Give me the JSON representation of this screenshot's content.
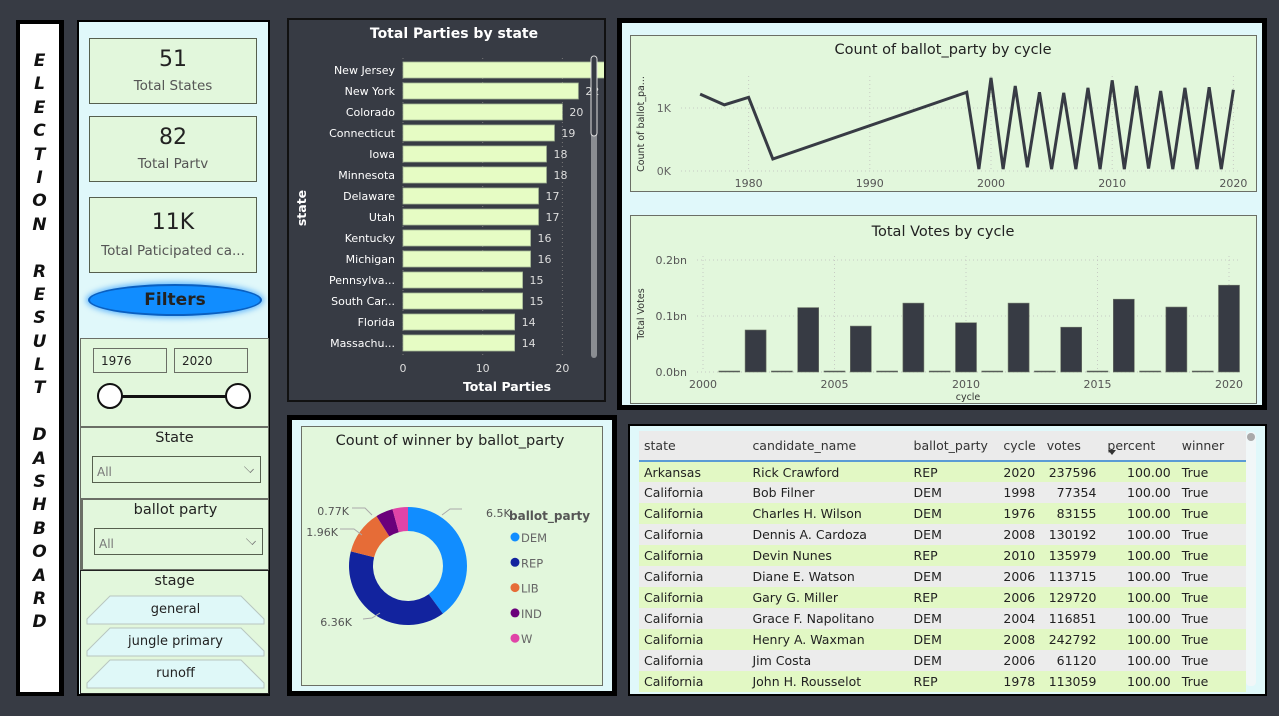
{
  "sidebar_title": "ELECTION RESULT DASHBOARD",
  "kpis": [
    {
      "value": "51",
      "label": "Total States"
    },
    {
      "value": "82",
      "label": "Total Partv"
    },
    {
      "value": "11K",
      "label": "Total Paticipated ca..."
    }
  ],
  "filters_button": "Filters",
  "year_slider": {
    "from": "1976",
    "to": "2020",
    "min": 1976,
    "max": 2020
  },
  "state_filter": {
    "title": "State",
    "value": "All"
  },
  "party_filter": {
    "title": "ballot party",
    "value": "All"
  },
  "stage_filter": {
    "title": "stage",
    "options": [
      "general",
      "jungle primary",
      "runoff"
    ]
  },
  "colors": {
    "page_bg": "#373b44",
    "panel_bg": "#e0f8fa",
    "card_bg": "#e2f7dc",
    "bar_fill": "#e6fcc4",
    "dark_series": "#373b44",
    "table_header_underline": "#5b9bd5"
  },
  "chart_data": [
    {
      "type": "bar",
      "orientation": "horizontal",
      "title": "Total Parties by state",
      "xlabel": "Total Parties",
      "ylabel": "state",
      "xlim": [
        0,
        26
      ],
      "xticks": [
        "0",
        "10",
        "20"
      ],
      "categories": [
        "New Jersey",
        "New York",
        "Colorado",
        "Connecticut",
        "Iowa",
        "Minnesota",
        "Delaware",
        "Utah",
        "Kentucky",
        "Michigan",
        "Pennsylva...",
        "South Car...",
        "Florida",
        "Massachu..."
      ],
      "values": [
        26,
        22,
        20,
        19,
        18,
        18,
        17,
        17,
        16,
        16,
        15,
        15,
        14,
        14
      ],
      "data_labels": true,
      "grid": true
    },
    {
      "type": "line",
      "title": "Count of ballot_party by cycle",
      "xlabel": "",
      "ylabel": "Count of ballot_pa...",
      "yticks": [
        "0K",
        "1K"
      ],
      "xticks": [
        "1980",
        "1990",
        "2000",
        "2010",
        "2020"
      ],
      "ylim": [
        0,
        1500
      ],
      "xlim": [
        1975,
        2021
      ],
      "x": [
        1976,
        1978,
        1980,
        1982,
        1998,
        1999,
        2000,
        2001,
        2002,
        2003,
        2004,
        2005,
        2006,
        2007,
        2008,
        2009,
        2010,
        2011,
        2012,
        2013,
        2014,
        2015,
        2016,
        2017,
        2018,
        2019,
        2020
      ],
      "values": [
        1220,
        1050,
        1170,
        190,
        1250,
        30,
        1480,
        30,
        1350,
        60,
        1250,
        30,
        1240,
        30,
        1320,
        30,
        1440,
        30,
        1350,
        40,
        1270,
        30,
        1320,
        30,
        1330,
        30,
        1290
      ],
      "grid": true
    },
    {
      "type": "bar",
      "title": "Total Votes by cycle",
      "xlabel": "cycle",
      "ylabel": "Total Votes",
      "yticks": [
        "0.0bn",
        "0.1bn",
        "0.2bn"
      ],
      "xticks": [
        "2000",
        "2005",
        "2010",
        "2015",
        "2020"
      ],
      "ylim": [
        0,
        0.2
      ],
      "xlim": [
        1999.5,
        2020.6
      ],
      "categories": [
        2001,
        2002,
        2003,
        2004,
        2005,
        2006,
        2007,
        2008,
        2009,
        2010,
        2011,
        2012,
        2013,
        2014,
        2015,
        2016,
        2017,
        2018,
        2019,
        2020
      ],
      "values": [
        0.001,
        0.075,
        0.001,
        0.115,
        0.001,
        0.082,
        0.001,
        0.123,
        0.001,
        0.088,
        0.001,
        0.123,
        0.001,
        0.08,
        0.001,
        0.13,
        0.001,
        0.116,
        0.001,
        0.155
      ],
      "unit": "bn",
      "grid": true
    },
    {
      "type": "pie",
      "variant": "donut",
      "title": "Count of winner by ballot_party",
      "legend_title": "ballot_party",
      "legend_position": "right",
      "categories": [
        "DEM",
        "REP",
        "LIB",
        "IND",
        "W"
      ],
      "values": [
        6500,
        6360,
        1960,
        770,
        690
      ],
      "data_labels": [
        "6.5K",
        "6.36K",
        "1.96K",
        "0.77K",
        ""
      ],
      "colors": [
        "#118dff",
        "#12239e",
        "#e66c37",
        "#6b007b",
        "#e044a7"
      ]
    }
  ],
  "table": {
    "columns": [
      "state",
      "candidate_name",
      "ballot_party",
      "cycle",
      "votes",
      "percent",
      "winner"
    ],
    "sort_column": "percent",
    "rows": [
      [
        "Arkansas",
        "Rick Crawford",
        "REP",
        "2020",
        "237596",
        "100.00",
        "True"
      ],
      [
        "California",
        "Bob Filner",
        "DEM",
        "1998",
        "77354",
        "100.00",
        "True"
      ],
      [
        "California",
        "Charles H. Wilson",
        "DEM",
        "1976",
        "83155",
        "100.00",
        "True"
      ],
      [
        "California",
        "Dennis A. Cardoza",
        "DEM",
        "2008",
        "130192",
        "100.00",
        "True"
      ],
      [
        "California",
        "Devin Nunes",
        "REP",
        "2010",
        "135979",
        "100.00",
        "True"
      ],
      [
        "California",
        "Diane E. Watson",
        "DEM",
        "2006",
        "113715",
        "100.00",
        "True"
      ],
      [
        "California",
        "Gary G. Miller",
        "REP",
        "2006",
        "129720",
        "100.00",
        "True"
      ],
      [
        "California",
        "Grace F. Napolitano",
        "DEM",
        "2004",
        "116851",
        "100.00",
        "True"
      ],
      [
        "California",
        "Henry A. Waxman",
        "DEM",
        "2008",
        "242792",
        "100.00",
        "True"
      ],
      [
        "California",
        "Jim Costa",
        "DEM",
        "2006",
        "61120",
        "100.00",
        "True"
      ],
      [
        "California",
        "John H. Rousselot",
        "REP",
        "1978",
        "113059",
        "100.00",
        "True"
      ]
    ]
  }
}
